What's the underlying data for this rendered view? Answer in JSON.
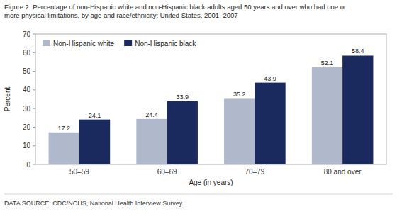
{
  "chart_data": {
    "type": "bar",
    "title": "Figure 2. Percentage of non-Hispanic white and non-Hispanic black adults aged 50 years and over who had one or\nmore physical limitations, by age and race/ethnicity: United States, 2001–2007",
    "x_label": "Age (in years)",
    "y_label": "Percent",
    "annotations": [
      "DATA SOURCE: CDC/NCHS, National Health Interview Survey."
    ],
    "categories": [
      "50–59",
      "60–69",
      "70–79",
      "80 and over"
    ],
    "series": [
      {
        "name": "Non-Hispanic white",
        "color": "#b0b8cc",
        "values": [
          17.2,
          24.4,
          35.2,
          52.1
        ]
      },
      {
        "name": "Non-Hispanic black",
        "color": "#1a2a5e",
        "values": [
          24.1,
          33.9,
          43.9,
          58.4
        ]
      }
    ],
    "ylim": [
      0,
      70
    ],
    "yticks": [
      0,
      10,
      20,
      30,
      40,
      50,
      60,
      70
    ],
    "grid": false,
    "legend": "upper left",
    "data_labels": true
  }
}
